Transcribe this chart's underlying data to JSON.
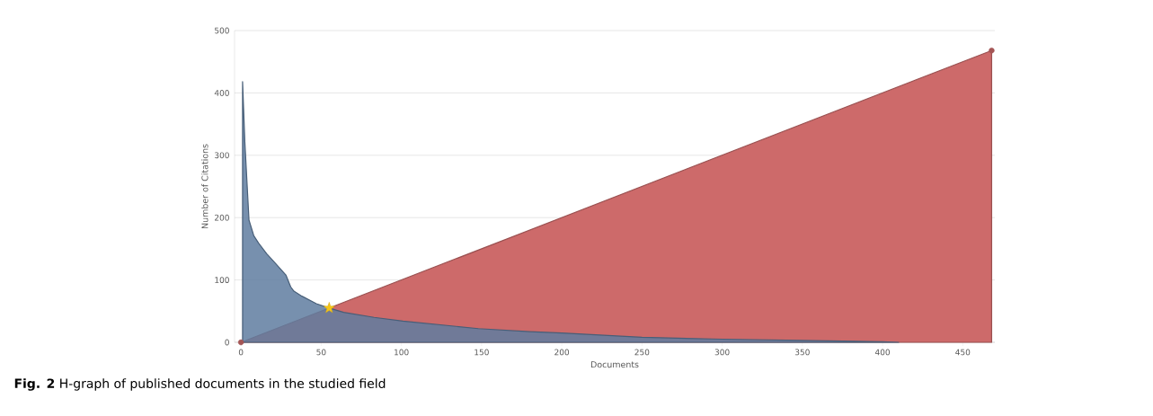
{
  "chart_data": {
    "type": "area",
    "xlabel": "Documents",
    "ylabel": "Number of Citations",
    "annotations": [
      "**Fig. 2** H-graph of published documents in the studied field"
    ],
    "xlim": [
      -4,
      470
    ],
    "ylim": [
      0,
      500
    ],
    "xticks": [
      0,
      50,
      100,
      150,
      200,
      250,
      300,
      350,
      400,
      450
    ],
    "yticks": [
      0,
      100,
      200,
      300,
      400,
      500
    ],
    "grid": "y",
    "series": [
      {
        "color": "#cd6a6a",
        "marker": "circle",
        "x": [
          0,
          468
        ],
        "values": [
          0,
          468
        ]
      },
      {
        "color": "#5f7da0",
        "marker": "none",
        "x": [
          1,
          2.4,
          5,
          8,
          11,
          16,
          21,
          28,
          31,
          33,
          38,
          47,
          55,
          64,
          83,
          101,
          148,
          180,
          200,
          250,
          300,
          350,
          400,
          410
        ],
        "values": [
          418,
          322,
          196,
          171,
          159,
          142,
          128,
          108,
          89,
          82,
          74,
          62,
          55,
          48,
          40,
          34,
          22,
          17,
          15,
          8,
          5,
          3,
          1,
          0
        ]
      },
      {
        "type": "scatter",
        "color": "#f5c518",
        "marker": "star",
        "x": [
          55
        ],
        "values": [
          55
        ]
      }
    ]
  }
}
